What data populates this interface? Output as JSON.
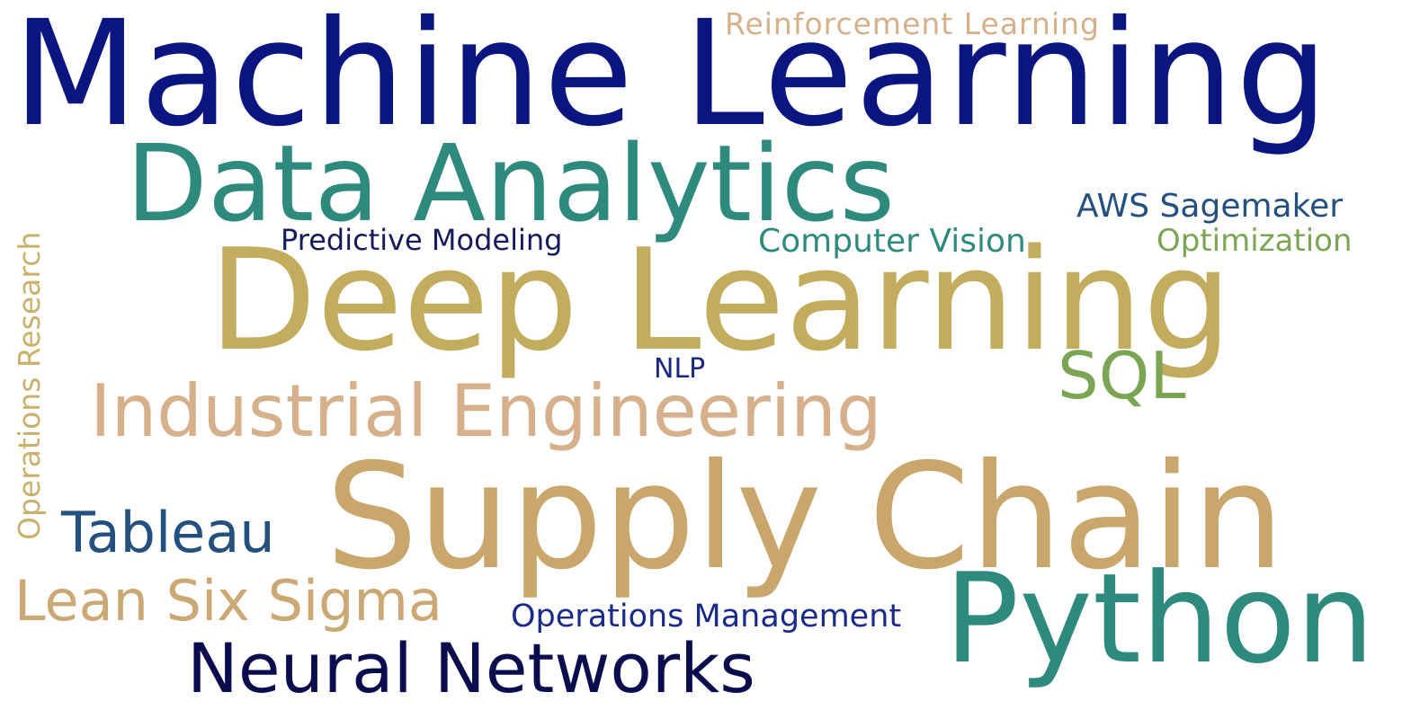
{
  "words": [
    {
      "text": "Machine Learning",
      "color": "#0a1580"
    },
    {
      "text": "Data Analytics",
      "color": "#2f8a7e"
    },
    {
      "text": "Deep Learning",
      "color": "#c2ac5e"
    },
    {
      "text": "Supply Chain",
      "color": "#c9a66b"
    },
    {
      "text": "Python",
      "color": "#2f8a7e"
    },
    {
      "text": "Industrial Engineering",
      "color": "#d6b08a"
    },
    {
      "text": "Neural Networks",
      "color": "#0a0c4d"
    },
    {
      "text": "Tableau",
      "color": "#23507f"
    },
    {
      "text": "Lean Six Sigma",
      "color": "#cca874"
    },
    {
      "text": "SQL",
      "color": "#7aa653"
    },
    {
      "text": "Predictive Modeling",
      "color": "#141a5c"
    },
    {
      "text": "Computer Vision",
      "color": "#2f8a7e"
    },
    {
      "text": "Optimization",
      "color": "#7aa653"
    },
    {
      "text": "AWS Sagemaker",
      "color": "#23507f"
    },
    {
      "text": "Reinforcement Learning",
      "color": "#d6b08a"
    },
    {
      "text": "NLP",
      "color": "#1a2780"
    },
    {
      "text": "Operations Management",
      "color": "#1a2a8a"
    },
    {
      "text": "Operations Research",
      "color": "#c9b06b"
    }
  ]
}
